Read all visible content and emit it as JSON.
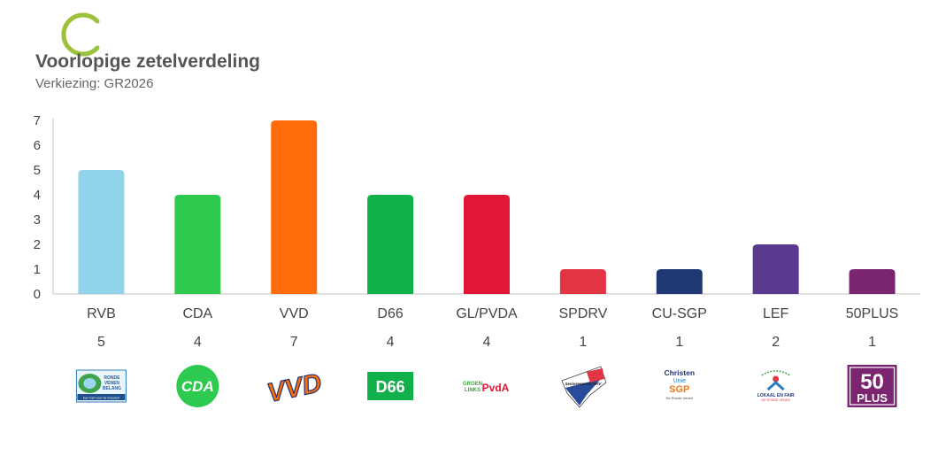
{
  "header": {
    "title": "Voorlopige zetelverdeling",
    "subtitle": "Verkiezing: GR2026"
  },
  "colors": {
    "RVB": "#92d3ec",
    "CDA": "#2dca4f",
    "VVD": "#fe6c0a",
    "D66": "#12b04a",
    "GL/PVDA": "#e11736",
    "SPDRV": "#e23443",
    "CU-SGP": "#1f3772",
    "LEF": "#5a3990",
    "50PLUS": "#7b2470"
  },
  "logos": [
    {
      "party": "RVB",
      "icon": "ronde-venen-belang-logo",
      "lines": [
        "RONDE",
        "VENEN",
        "BELANG",
        "Een hart voor de inwoner!"
      ]
    },
    {
      "party": "CDA",
      "icon": "cda-logo",
      "lines": [
        "CDA"
      ]
    },
    {
      "party": "VVD",
      "icon": "vvd-logo",
      "lines": [
        "VVD"
      ]
    },
    {
      "party": "D66",
      "icon": "d66-logo",
      "lines": [
        "D66"
      ]
    },
    {
      "party": "GL/PVDA",
      "icon": "groenlinks-pvda-logo",
      "lines": [
        "GROEN",
        "LINKS",
        "PvdA"
      ]
    },
    {
      "party": "SPDRV",
      "icon": "seniorenpartij-drv-logo",
      "lines": [
        "Seniorenpartij DRV"
      ]
    },
    {
      "party": "CU-SGP",
      "icon": "christenunie-sgp-logo",
      "lines": [
        "Christen",
        "Unie",
        "SGP",
        "De Ronde Venen"
      ]
    },
    {
      "party": "LEF",
      "icon": "lokaal-en-fair-logo",
      "lines": [
        "LOKAAL EN FAIR",
        "DE RONDE VENEN"
      ]
    },
    {
      "party": "50PLUS",
      "icon": "50plus-logo",
      "lines": [
        "50",
        "PLUS"
      ]
    }
  ],
  "chart_data": {
    "type": "bar",
    "title": "Voorlopige zetelverdeling",
    "subtitle": "Verkiezing: GR2026",
    "categories": [
      "RVB",
      "CDA",
      "VVD",
      "D66",
      "GL/PVDA",
      "SPDRV",
      "CU-SGP",
      "LEF",
      "50PLUS"
    ],
    "values": [
      5,
      4,
      7,
      4,
      4,
      1,
      1,
      2,
      1
    ],
    "value_labels": [
      "5",
      "4",
      "7",
      "4",
      "4",
      "1",
      "1",
      "2",
      "1"
    ],
    "yticks": [
      "0",
      "1",
      "2",
      "3",
      "4",
      "5",
      "6",
      "7"
    ],
    "ylim": [
      0,
      7
    ],
    "xlabel": "",
    "ylabel": "",
    "grid": false,
    "legend": "none"
  }
}
